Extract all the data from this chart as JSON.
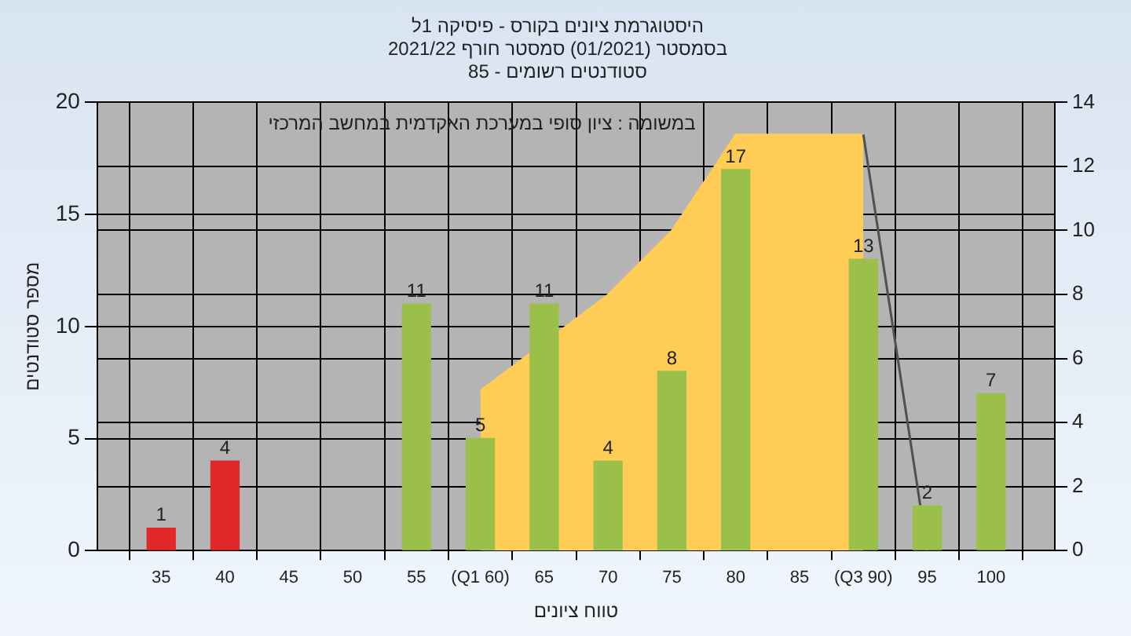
{
  "chart_data": {
    "type": "bar",
    "title": "היסטוגרמת ציונים בקורס - פיסיקה 1ל",
    "subtitle": [
      "בסמסטר (01/2021) סמסטר חורף 2021/22",
      "סטודנטים רשומים - 85"
    ],
    "xlabel": "טווח ציונים",
    "ylabel": "מספר סטודנטים",
    "annotations": [
      "במשומה : ציון סופי במערכת האקדמית במחשב המרכזי"
    ],
    "x": [
      35,
      40,
      45,
      50,
      55,
      60,
      65,
      70,
      75,
      80,
      85,
      90,
      95,
      100
    ],
    "series": [
      {
        "values": [
          1,
          4,
          null,
          null,
          11,
          5,
          11,
          4,
          8,
          17,
          null,
          13,
          2,
          7
        ],
        "value_labels": [
          "1",
          "4",
          null,
          null,
          "11",
          "5",
          "11",
          "4",
          "8",
          "17",
          null,
          "13",
          "2",
          "7"
        ],
        "colors": [
          "#e02828",
          "#e02828",
          "#9bc04a",
          "#9bc04a",
          "#9bc04a",
          "#9bc04a",
          "#9bc04a",
          "#9bc04a",
          "#9bc04a",
          "#9bc04a",
          "#9bc04a",
          "#9bc04a",
          "#9bc04a",
          "#9bc04a"
        ]
      },
      {
        "type": "area",
        "axis": "y2",
        "color": "#ffcc55",
        "x": [
          60,
          65,
          70,
          75,
          80,
          85,
          90
        ],
        "values": [
          5,
          null,
          8,
          10,
          13,
          13,
          13
        ]
      },
      {
        "type": "line",
        "axis": "y2",
        "color": "#505050",
        "x": [
          90,
          95
        ],
        "values": [
          13,
          0
        ]
      }
    ],
    "xlim": [
      30,
      105
    ],
    "xticks": [
      35,
      40,
      45,
      50,
      55,
      {
        "value": 60,
        "label": "(Q1 60)"
      },
      65,
      70,
      75,
      80,
      85,
      {
        "value": 90,
        "label": "(Q3 90)"
      },
      95,
      100
    ],
    "ylim": [
      0,
      20
    ],
    "yticks": [
      0,
      5,
      10,
      15,
      20
    ],
    "y2lim": [
      0,
      14
    ],
    "y2ticks": [
      0,
      2,
      4,
      6,
      8,
      10,
      12,
      14
    ],
    "grid": true,
    "legend": false
  }
}
